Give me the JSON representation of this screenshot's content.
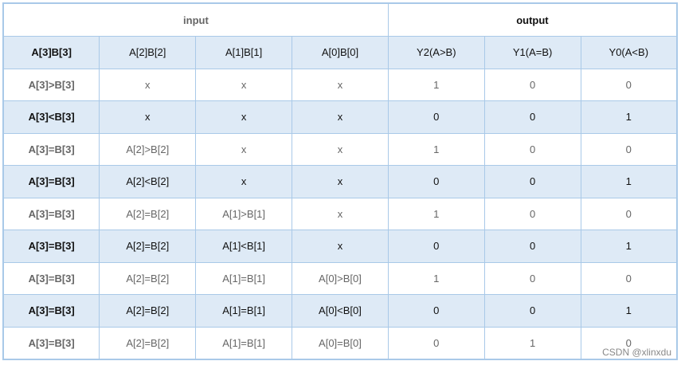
{
  "header": {
    "input": "input",
    "output": "output"
  },
  "columns": [
    "A[3]B[3]",
    "A[2]B[2]",
    "A[1]B[1]",
    "A[0]B[0]",
    "Y2(A>B)",
    "Y1(A=B)",
    "Y0(A<B)"
  ],
  "rows": [
    [
      "A[3]>B[3]",
      "x",
      "x",
      "x",
      "1",
      "0",
      "0"
    ],
    [
      "A[3]<B[3]",
      "x",
      "x",
      "x",
      "0",
      "0",
      "1"
    ],
    [
      "A[3]=B[3]",
      "A[2]>B[2]",
      "x",
      "x",
      "1",
      "0",
      "0"
    ],
    [
      "A[3]=B[3]",
      "A[2]<B[2]",
      "x",
      "x",
      "0",
      "0",
      "1"
    ],
    [
      "A[3]=B[3]",
      "A[2]=B[2]",
      "A[1]>B[1]",
      "x",
      "1",
      "0",
      "0"
    ],
    [
      "A[3]=B[3]",
      "A[2]=B[2]",
      "A[1]<B[1]",
      "x",
      "0",
      "0",
      "1"
    ],
    [
      "A[3]=B[3]",
      "A[2]=B[2]",
      "A[1]=B[1]",
      "A[0]>B[0]",
      "1",
      "0",
      "0"
    ],
    [
      "A[3]=B[3]",
      "A[2]=B[2]",
      "A[1]=B[1]",
      "A[0]<B[0]",
      "0",
      "0",
      "1"
    ],
    [
      "A[3]=B[3]",
      "A[2]=B[2]",
      "A[1]=B[1]",
      "A[0]=B[0]",
      "0",
      "1",
      "0"
    ]
  ],
  "watermark": "CSDN @xlinxdu",
  "colors": {
    "border": "#a9c9e8",
    "shade": "#deeaf6"
  }
}
